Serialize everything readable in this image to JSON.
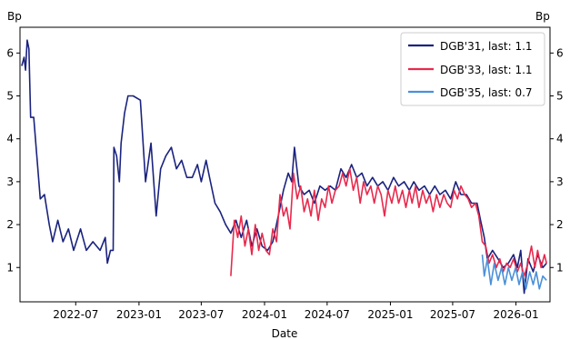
{
  "chart_data": {
    "type": "line",
    "xlabel": "Date",
    "ylabel_left": "Bp",
    "ylabel_right": "Bp",
    "x_ticks": [
      "2022-07",
      "2023-01",
      "2023-07",
      "2024-01",
      "2024-07",
      "2025-01",
      "2025-07",
      "2026-01"
    ],
    "y_ticks": [
      1,
      2,
      3,
      4,
      5,
      6
    ],
    "xlim": [
      "2022-01-20",
      "2026-04-10"
    ],
    "ylim": [
      0.2,
      6.6
    ],
    "legend_position": "top-right",
    "grid": false,
    "series": [
      {
        "name": "DGB'31, last: 1.1",
        "color": "#1a237e",
        "points": [
          [
            "2022-01-25",
            5.7
          ],
          [
            "2022-02-01",
            5.9
          ],
          [
            "2022-02-05",
            5.6
          ],
          [
            "2022-02-10",
            6.3
          ],
          [
            "2022-02-15",
            6.1
          ],
          [
            "2022-02-20",
            4.5
          ],
          [
            "2022-03-01",
            4.5
          ],
          [
            "2022-03-10",
            3.6
          ],
          [
            "2022-03-20",
            2.6
          ],
          [
            "2022-04-01",
            2.7
          ],
          [
            "2022-04-15",
            2.0
          ],
          [
            "2022-04-25",
            1.6
          ],
          [
            "2022-05-10",
            2.1
          ],
          [
            "2022-05-25",
            1.6
          ],
          [
            "2022-06-10",
            1.9
          ],
          [
            "2022-06-25",
            1.4
          ],
          [
            "2022-07-15",
            1.9
          ],
          [
            "2022-08-01",
            1.4
          ],
          [
            "2022-08-20",
            1.6
          ],
          [
            "2022-09-10",
            1.4
          ],
          [
            "2022-09-25",
            1.7
          ],
          [
            "2022-10-01",
            1.1
          ],
          [
            "2022-10-10",
            1.4
          ],
          [
            "2022-10-18",
            1.4
          ],
          [
            "2022-10-20",
            3.8
          ],
          [
            "2022-10-28",
            3.6
          ],
          [
            "2022-11-05",
            3.0
          ],
          [
            "2022-11-10",
            3.9
          ],
          [
            "2022-11-20",
            4.6
          ],
          [
            "2022-11-30",
            5.0
          ],
          [
            "2022-12-15",
            5.0
          ],
          [
            "2023-01-05",
            4.9
          ],
          [
            "2023-01-20",
            3.0
          ],
          [
            "2023-02-05",
            3.9
          ],
          [
            "2023-02-20",
            2.2
          ],
          [
            "2023-03-05",
            3.3
          ],
          [
            "2023-03-20",
            3.6
          ],
          [
            "2023-04-05",
            3.8
          ],
          [
            "2023-04-20",
            3.3
          ],
          [
            "2023-05-05",
            3.5
          ],
          [
            "2023-05-20",
            3.1
          ],
          [
            "2023-06-05",
            3.1
          ],
          [
            "2023-06-20",
            3.4
          ],
          [
            "2023-07-01",
            3.0
          ],
          [
            "2023-07-15",
            3.5
          ],
          [
            "2023-07-25",
            3.1
          ],
          [
            "2023-08-10",
            2.5
          ],
          [
            "2023-08-25",
            2.3
          ],
          [
            "2023-09-10",
            2.0
          ],
          [
            "2023-09-25",
            1.8
          ],
          [
            "2023-10-10",
            2.1
          ],
          [
            "2023-10-25",
            1.7
          ],
          [
            "2023-11-10",
            2.1
          ],
          [
            "2023-11-25",
            1.5
          ],
          [
            "2023-12-10",
            1.9
          ],
          [
            "2023-12-25",
            1.5
          ],
          [
            "2024-01-10",
            1.4
          ],
          [
            "2024-01-25",
            1.6
          ],
          [
            "2024-02-10",
            2.2
          ],
          [
            "2024-02-25",
            2.8
          ],
          [
            "2024-03-10",
            3.2
          ],
          [
            "2024-03-20",
            3.0
          ],
          [
            "2024-03-28",
            3.8
          ],
          [
            "2024-04-10",
            2.9
          ],
          [
            "2024-04-25",
            2.7
          ],
          [
            "2024-05-10",
            2.8
          ],
          [
            "2024-05-25",
            2.5
          ],
          [
            "2024-06-10",
            2.9
          ],
          [
            "2024-06-25",
            2.8
          ],
          [
            "2024-07-10",
            2.9
          ],
          [
            "2024-07-25",
            2.8
          ],
          [
            "2024-08-10",
            3.3
          ],
          [
            "2024-08-25",
            3.1
          ],
          [
            "2024-09-10",
            3.4
          ],
          [
            "2024-09-25",
            3.1
          ],
          [
            "2024-10-10",
            3.2
          ],
          [
            "2024-10-25",
            2.9
          ],
          [
            "2024-11-10",
            3.1
          ],
          [
            "2024-11-25",
            2.9
          ],
          [
            "2024-12-10",
            3.0
          ],
          [
            "2024-12-25",
            2.8
          ],
          [
            "2025-01-10",
            3.1
          ],
          [
            "2025-01-25",
            2.9
          ],
          [
            "2025-02-10",
            3.0
          ],
          [
            "2025-02-25",
            2.8
          ],
          [
            "2025-03-10",
            3.0
          ],
          [
            "2025-03-25",
            2.8
          ],
          [
            "2025-04-10",
            2.9
          ],
          [
            "2025-04-25",
            2.7
          ],
          [
            "2025-05-10",
            2.9
          ],
          [
            "2025-05-25",
            2.7
          ],
          [
            "2025-06-10",
            2.8
          ],
          [
            "2025-06-25",
            2.6
          ],
          [
            "2025-07-10",
            3.0
          ],
          [
            "2025-07-25",
            2.7
          ],
          [
            "2025-08-10",
            2.7
          ],
          [
            "2025-08-25",
            2.5
          ],
          [
            "2025-09-10",
            2.5
          ],
          [
            "2025-09-20",
            2.1
          ],
          [
            "2025-10-01",
            1.7
          ],
          [
            "2025-10-10",
            1.2
          ],
          [
            "2025-10-25",
            1.4
          ],
          [
            "2025-11-10",
            1.2
          ],
          [
            "2025-11-25",
            1.0
          ],
          [
            "2025-12-10",
            1.1
          ],
          [
            "2025-12-25",
            1.3
          ],
          [
            "2026-01-05",
            1.0
          ],
          [
            "2026-01-15",
            1.4
          ],
          [
            "2026-01-25",
            0.4
          ],
          [
            "2026-02-05",
            1.2
          ],
          [
            "2026-02-20",
            0.9
          ],
          [
            "2026-03-05",
            1.3
          ],
          [
            "2026-03-20",
            1.0
          ],
          [
            "2026-03-31",
            1.1
          ]
        ]
      },
      {
        "name": "DGB'33, last: 1.1",
        "color": "#e8294c",
        "points": [
          [
            "2023-09-25",
            0.8
          ],
          [
            "2023-10-05",
            2.1
          ],
          [
            "2023-10-15",
            1.7
          ],
          [
            "2023-10-25",
            2.2
          ],
          [
            "2023-11-05",
            1.5
          ],
          [
            "2023-11-15",
            1.9
          ],
          [
            "2023-11-25",
            1.3
          ],
          [
            "2023-12-05",
            2.0
          ],
          [
            "2023-12-15",
            1.4
          ],
          [
            "2023-12-25",
            1.8
          ],
          [
            "2024-01-05",
            1.4
          ],
          [
            "2024-01-15",
            1.3
          ],
          [
            "2024-01-25",
            1.9
          ],
          [
            "2024-02-05",
            1.6
          ],
          [
            "2024-02-15",
            2.7
          ],
          [
            "2024-02-25",
            2.2
          ],
          [
            "2024-03-05",
            2.4
          ],
          [
            "2024-03-15",
            1.9
          ],
          [
            "2024-03-25",
            3.2
          ],
          [
            "2024-04-05",
            2.6
          ],
          [
            "2024-04-15",
            2.9
          ],
          [
            "2024-04-25",
            2.3
          ],
          [
            "2024-05-05",
            2.6
          ],
          [
            "2024-05-15",
            2.2
          ],
          [
            "2024-05-25",
            2.8
          ],
          [
            "2024-06-05",
            2.1
          ],
          [
            "2024-06-15",
            2.6
          ],
          [
            "2024-06-25",
            2.4
          ],
          [
            "2024-07-05",
            2.9
          ],
          [
            "2024-07-15",
            2.5
          ],
          [
            "2024-07-25",
            2.8
          ],
          [
            "2024-08-05",
            2.9
          ],
          [
            "2024-08-15",
            3.2
          ],
          [
            "2024-08-25",
            2.9
          ],
          [
            "2024-09-05",
            3.3
          ],
          [
            "2024-09-15",
            2.8
          ],
          [
            "2024-09-25",
            3.1
          ],
          [
            "2024-10-05",
            2.5
          ],
          [
            "2024-10-15",
            3.0
          ],
          [
            "2024-10-25",
            2.7
          ],
          [
            "2024-11-05",
            2.9
          ],
          [
            "2024-11-15",
            2.5
          ],
          [
            "2024-11-25",
            2.9
          ],
          [
            "2024-12-05",
            2.7
          ],
          [
            "2024-12-15",
            2.2
          ],
          [
            "2024-12-25",
            2.8
          ],
          [
            "2025-01-05",
            2.5
          ],
          [
            "2025-01-15",
            2.9
          ],
          [
            "2025-01-25",
            2.5
          ],
          [
            "2025-02-05",
            2.8
          ],
          [
            "2025-02-15",
            2.4
          ],
          [
            "2025-02-25",
            2.8
          ],
          [
            "2025-03-05",
            2.5
          ],
          [
            "2025-03-15",
            2.9
          ],
          [
            "2025-03-25",
            2.4
          ],
          [
            "2025-04-05",
            2.8
          ],
          [
            "2025-04-15",
            2.5
          ],
          [
            "2025-04-25",
            2.7
          ],
          [
            "2025-05-05",
            2.3
          ],
          [
            "2025-05-15",
            2.7
          ],
          [
            "2025-05-25",
            2.4
          ],
          [
            "2025-06-05",
            2.7
          ],
          [
            "2025-06-15",
            2.5
          ],
          [
            "2025-06-25",
            2.4
          ],
          [
            "2025-07-05",
            2.8
          ],
          [
            "2025-07-15",
            2.6
          ],
          [
            "2025-07-25",
            2.9
          ],
          [
            "2025-08-05",
            2.7
          ],
          [
            "2025-08-15",
            2.6
          ],
          [
            "2025-08-25",
            2.4
          ],
          [
            "2025-09-05",
            2.5
          ],
          [
            "2025-09-15",
            2.2
          ],
          [
            "2025-09-25",
            1.6
          ],
          [
            "2025-10-05",
            1.5
          ],
          [
            "2025-10-15",
            1.1
          ],
          [
            "2025-10-25",
            1.3
          ],
          [
            "2025-11-05",
            1.0
          ],
          [
            "2025-11-15",
            1.2
          ],
          [
            "2025-11-25",
            0.9
          ],
          [
            "2025-12-05",
            1.1
          ],
          [
            "2025-12-15",
            1.0
          ],
          [
            "2025-12-25",
            1.2
          ],
          [
            "2026-01-05",
            0.9
          ],
          [
            "2026-01-15",
            1.1
          ],
          [
            "2026-01-25",
            0.8
          ],
          [
            "2026-02-05",
            1.1
          ],
          [
            "2026-02-15",
            1.5
          ],
          [
            "2026-02-25",
            1.0
          ],
          [
            "2026-03-05",
            1.4
          ],
          [
            "2026-03-15",
            1.0
          ],
          [
            "2026-03-25",
            1.3
          ],
          [
            "2026-03-31",
            1.1
          ]
        ]
      },
      {
        "name": "DGB'35, last: 0.7",
        "color": "#4a90d9",
        "points": [
          [
            "2025-09-25",
            1.3
          ],
          [
            "2025-10-01",
            0.8
          ],
          [
            "2025-10-10",
            1.2
          ],
          [
            "2025-10-20",
            0.6
          ],
          [
            "2025-10-30",
            1.1
          ],
          [
            "2025-11-10",
            0.7
          ],
          [
            "2025-11-20",
            1.0
          ],
          [
            "2025-11-30",
            0.6
          ],
          [
            "2025-12-10",
            1.0
          ],
          [
            "2025-12-20",
            0.7
          ],
          [
            "2025-12-31",
            1.0
          ],
          [
            "2026-01-10",
            0.6
          ],
          [
            "2026-01-20",
            0.9
          ],
          [
            "2026-01-30",
            0.5
          ],
          [
            "2026-02-10",
            0.9
          ],
          [
            "2026-02-20",
            0.6
          ],
          [
            "2026-03-01",
            0.9
          ],
          [
            "2026-03-10",
            0.5
          ],
          [
            "2026-03-20",
            0.8
          ],
          [
            "2026-03-31",
            0.7
          ]
        ]
      }
    ]
  }
}
